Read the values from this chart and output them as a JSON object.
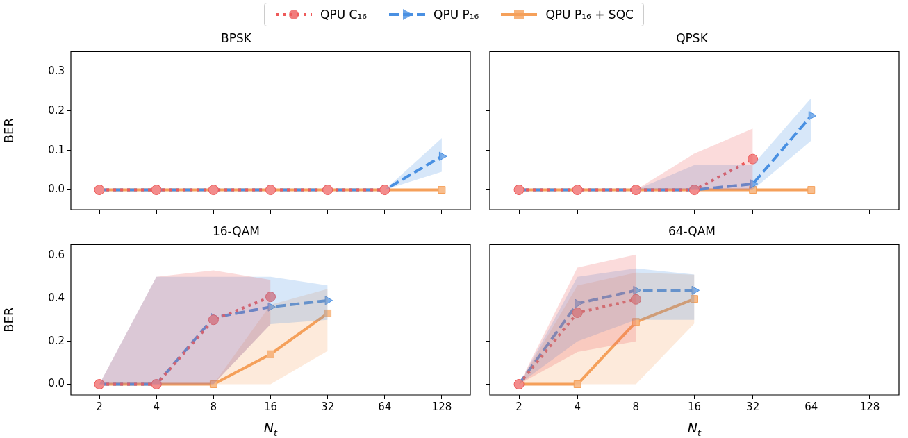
{
  "chart_data": [
    {
      "type": "line",
      "title": "BPSK",
      "ylabel": "BER",
      "categories": [
        "2",
        "4",
        "8",
        "16",
        "32",
        "64",
        "128"
      ],
      "ylim": [
        -0.05,
        0.35
      ],
      "yticks": [
        {
          "value": 0,
          "label": "0.0"
        },
        {
          "value": 0.1,
          "label": "0.1"
        },
        {
          "value": 0.2,
          "label": "0.2"
        },
        {
          "value": 0.3,
          "label": "0.3"
        }
      ],
      "tick_labels": "y",
      "legend": "top",
      "series": [
        {
          "name": "QPU C₁₆",
          "color": "#ee5a5a",
          "marker": "circle",
          "line_style": "dotted",
          "values": [
            0,
            0,
            0,
            0,
            0,
            0,
            null
          ]
        },
        {
          "name": "QPU P₁₆",
          "color": "#4a90e2",
          "marker": "triangle",
          "line_style": "dashed",
          "values": [
            0,
            0,
            0,
            0,
            0,
            0,
            0.085
          ],
          "lower": [
            null,
            null,
            null,
            null,
            null,
            0,
            0.046
          ],
          "upper": [
            null,
            null,
            null,
            null,
            null,
            0,
            0.131
          ]
        },
        {
          "name": "QPU P₁₆ + SQC",
          "color": "#f5a05a",
          "marker": "square",
          "line_style": "solid",
          "values": [
            0,
            0,
            0,
            0,
            0,
            0,
            0
          ]
        }
      ]
    },
    {
      "type": "line",
      "title": "QPSK",
      "categories": [
        "2",
        "4",
        "8",
        "16",
        "32",
        "64",
        "128"
      ],
      "ylim": [
        -0.05,
        0.35
      ],
      "yticks": [
        {
          "value": 0,
          "label": null
        },
        {
          "value": 0.1,
          "label": null
        },
        {
          "value": 0.2,
          "label": null
        },
        {
          "value": 0.3,
          "label": null
        }
      ],
      "tick_labels": false,
      "series": [
        {
          "color": "#ee5a5a",
          "marker": "circle",
          "line_style": "dotted",
          "values": [
            0,
            0,
            0,
            0,
            0.078,
            null,
            null
          ],
          "lower": [
            null,
            null,
            0,
            0,
            0,
            null,
            null
          ],
          "upper": [
            null,
            null,
            0,
            0.092,
            0.155,
            null,
            null
          ]
        },
        {
          "color": "#4a90e2",
          "marker": "triangle",
          "line_style": "dashed",
          "values": [
            0,
            0,
            0,
            0,
            0.015,
            0.188,
            null
          ],
          "lower": [
            null,
            null,
            0,
            0,
            0,
            0.125,
            null
          ],
          "upper": [
            null,
            null,
            0,
            0.063,
            0.063,
            0.233,
            null
          ]
        },
        {
          "color": "#f5a05a",
          "marker": "square",
          "line_style": "solid",
          "values": [
            0,
            0,
            0,
            0,
            0,
            0,
            null
          ]
        }
      ]
    },
    {
      "type": "line",
      "title": "16-QAM",
      "xlabel": "N$_{t}$",
      "ylabel": "BER",
      "categories": [
        "2",
        "4",
        "8",
        "16",
        "32",
        "64",
        "128"
      ],
      "ylim": [
        -0.05,
        0.65
      ],
      "yticks": [
        {
          "value": 0,
          "label": "0.0"
        },
        {
          "value": 0.2,
          "label": "0.2"
        },
        {
          "value": 0.4,
          "label": "0.4"
        },
        {
          "value": 0.6,
          "label": "0.6"
        }
      ],
      "series": [
        {
          "color": "#ee5a5a",
          "marker": "circle",
          "line_style": "dotted",
          "values": [
            0,
            0,
            0.3,
            0.407,
            null,
            null,
            null
          ],
          "lower": [
            0,
            0,
            0,
            0.28,
            null,
            null,
            null
          ],
          "upper": [
            0,
            0.5,
            0.53,
            0.486,
            null,
            null,
            null
          ]
        },
        {
          "color": "#4a90e2",
          "marker": "triangle",
          "line_style": "dashed",
          "values": [
            0,
            0,
            0.31,
            0.36,
            0.39,
            null,
            null
          ],
          "lower": [
            0,
            0,
            0,
            0.28,
            0.3,
            null,
            null
          ],
          "upper": [
            0,
            0.5,
            0.5,
            0.5,
            0.46,
            null,
            null
          ]
        },
        {
          "color": "#f5a05a",
          "marker": "square",
          "line_style": "solid",
          "values": [
            0,
            0,
            0,
            0.14,
            0.33,
            null,
            null
          ],
          "lower": [
            null,
            null,
            0,
            0,
            0.155,
            null,
            null
          ],
          "upper": [
            null,
            null,
            0,
            0.37,
            0.444,
            null,
            null
          ]
        }
      ]
    },
    {
      "type": "line",
      "title": "64-QAM",
      "xlabel": "N$_{t}$",
      "categories": [
        "2",
        "4",
        "8",
        "16",
        "32",
        "64",
        "128"
      ],
      "ylim": [
        -0.05,
        0.65
      ],
      "yticks": [
        {
          "value": 0,
          "label": null
        },
        {
          "value": 0.2,
          "label": null
        },
        {
          "value": 0.4,
          "label": null
        },
        {
          "value": 0.6,
          "label": null
        }
      ],
      "tick_labels": "x",
      "series": [
        {
          "color": "#ee5a5a",
          "marker": "circle",
          "line_style": "dotted",
          "values": [
            0,
            0.333,
            0.395,
            null,
            null,
            null,
            null
          ],
          "lower": [
            0,
            0.15,
            0.2,
            null,
            null,
            null,
            null
          ],
          "upper": [
            0,
            0.543,
            0.604,
            null,
            null,
            null,
            null
          ]
        },
        {
          "color": "#4a90e2",
          "marker": "triangle",
          "line_style": "dashed",
          "values": [
            0,
            0.376,
            0.437,
            0.437,
            null,
            null,
            null
          ],
          "lower": [
            0,
            0.2,
            0.3,
            0.3,
            null,
            null,
            null
          ],
          "upper": [
            0,
            0.5,
            0.539,
            0.511,
            null,
            null,
            null
          ]
        },
        {
          "color": "#f5a05a",
          "marker": "square",
          "line_style": "solid",
          "values": [
            0,
            0,
            0.29,
            0.397,
            null,
            null,
            null
          ],
          "lower": [
            0,
            0,
            0,
            0.283,
            null,
            null,
            null
          ],
          "upper": [
            0,
            0.46,
            0.52,
            0.51,
            null,
            null,
            null
          ]
        }
      ]
    }
  ]
}
